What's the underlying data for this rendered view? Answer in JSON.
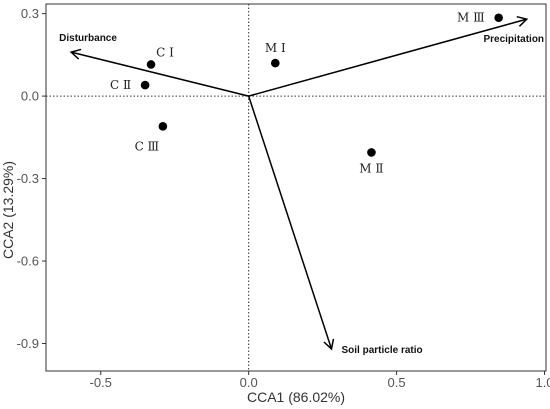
{
  "chart_data": {
    "type": "scatter",
    "title": "",
    "xlabel": "CCA1 (86.02%)",
    "ylabel": "CCA2 (13.29%)",
    "xlim": [
      -0.685,
      1.005
    ],
    "ylim": [
      -1.0,
      0.335
    ],
    "xticks": [
      -0.5,
      0.0,
      0.5,
      1.0
    ],
    "xtick_labels": [
      "-0.5",
      "0.0",
      "0.5",
      "1.0"
    ],
    "yticks": [
      0.3,
      0.0,
      -0.3,
      -0.6,
      -0.9
    ],
    "ytick_labels": [
      "0.3",
      "0.0",
      "-0.3",
      "-0.6",
      "-0.9"
    ],
    "reference_lines": {
      "x": 0,
      "y": 0,
      "style": "dotted"
    },
    "grid": false,
    "colors": {
      "marks": "#000000",
      "frame": "#333333"
    },
    "vectors": [
      {
        "name": "Disturbance",
        "x": -0.6,
        "y": 0.16,
        "label_pos": "above-left"
      },
      {
        "name": "Precipitation",
        "x": 0.94,
        "y": 0.28,
        "label_pos": "below"
      },
      {
        "name": "Soil particle ratio",
        "x": 0.28,
        "y": -0.92,
        "label_pos": "right"
      }
    ],
    "sites": [
      {
        "label": "C Ⅰ",
        "x": -0.33,
        "y": 0.115,
        "label_pos": "above-right"
      },
      {
        "label": "C Ⅱ",
        "x": -0.35,
        "y": 0.04,
        "label_pos": "left"
      },
      {
        "label": "C Ⅲ",
        "x": -0.29,
        "y": -0.11,
        "label_pos": "below-left"
      },
      {
        "label": "M Ⅰ",
        "x": 0.09,
        "y": 0.12,
        "label_pos": "above"
      },
      {
        "label": "M Ⅱ",
        "x": 0.415,
        "y": -0.205,
        "label_pos": "below"
      },
      {
        "label": "M Ⅲ",
        "x": 0.845,
        "y": 0.285,
        "label_pos": "left"
      }
    ]
  }
}
